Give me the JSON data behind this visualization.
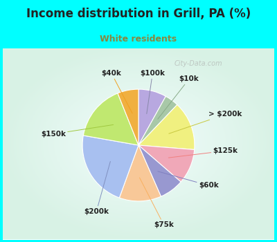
{
  "title": "Income distribution in Grill, PA (%)",
  "subtitle": "White residents",
  "bg_cyan": "#00FFFF",
  "chart_bg_top": "#d8f0e8",
  "chart_bg_bottom": "#e8f8f0",
  "labels": [
    "$100k",
    "$10k",
    "> $200k",
    "$125k",
    "$60k",
    "$75k",
    "$200k",
    "$150k",
    "$40k"
  ],
  "values": [
    8,
    4,
    14,
    10,
    7,
    12,
    22,
    16,
    6
  ],
  "colors": [
    "#b8a8e0",
    "#a8c8a8",
    "#f0f080",
    "#f0a8b8",
    "#9898d0",
    "#f8c898",
    "#a8c0f0",
    "#c0e870",
    "#f0b040"
  ],
  "wedge_linewidth": 0.8,
  "wedge_edgecolor": "#ffffff",
  "label_fontsize": 7.5,
  "title_fontsize": 12,
  "subtitle_fontsize": 9,
  "subtitle_color": "#888840",
  "watermark": "City-Data.com",
  "title_color": "#222222"
}
